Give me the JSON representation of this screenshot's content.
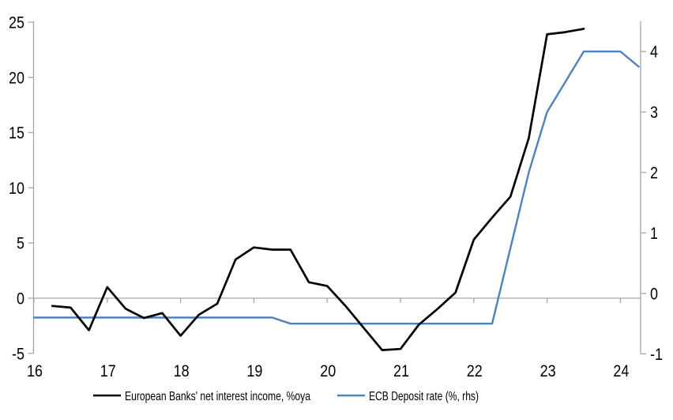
{
  "chart_data": {
    "type": "line",
    "title": "",
    "legend_position": "bottom-center",
    "grid": {
      "zero_line_only": true
    },
    "x_axis": {
      "min": 16,
      "max": 24.28,
      "ticks": [
        16,
        17,
        18,
        19,
        20,
        21,
        22,
        23,
        24
      ],
      "tick_position": "on-zero-line",
      "label_position": "bottom"
    },
    "left_axis": {
      "min": -5,
      "max": 25,
      "ticks": [
        -5,
        0,
        5,
        10,
        15,
        20,
        25
      ]
    },
    "right_axis": {
      "min": -1,
      "max": 4.5,
      "ticks": [
        -1,
        0,
        1,
        2,
        3,
        4
      ]
    },
    "series": [
      {
        "name": "European Banks' net interest income, %oya",
        "axis": "left",
        "color": "#000000",
        "x": [
          16.25,
          16.5,
          16.75,
          17,
          17.25,
          17.5,
          17.75,
          18,
          18.25,
          18.5,
          18.75,
          19,
          19.25,
          19.5,
          19.75,
          20,
          20.25,
          20.5,
          20.75,
          21,
          21.25,
          21.5,
          21.75,
          22,
          22.25,
          22.5,
          22.75,
          23,
          23.25,
          23.5
        ],
        "values": [
          -0.7,
          -0.85,
          -2.9,
          1.0,
          -0.95,
          -1.8,
          -1.35,
          -3.4,
          -1.5,
          -0.5,
          3.5,
          4.6,
          4.4,
          4.4,
          1.45,
          1.1,
          -0.7,
          -2.7,
          -4.7,
          -4.6,
          -2.4,
          -1.0,
          0.5,
          5.3,
          7.3,
          9.2,
          14.5,
          23.9,
          24.1,
          24.4
        ]
      },
      {
        "name": "ECB Deposit rate (%, rhs)",
        "axis": "right",
        "color": "#4F81BD",
        "x": [
          16,
          16.25,
          16.5,
          16.75,
          17,
          17.25,
          17.5,
          17.75,
          18,
          18.25,
          18.5,
          18.75,
          19,
          19.25,
          19.5,
          19.75,
          20,
          20.25,
          20.5,
          20.75,
          21,
          21.25,
          21.5,
          21.75,
          22,
          22.25,
          22.5,
          22.75,
          23,
          23.25,
          23.5,
          23.75,
          24,
          24.25
        ],
        "values": [
          -0.4,
          -0.4,
          -0.4,
          -0.4,
          -0.4,
          -0.4,
          -0.4,
          -0.4,
          -0.4,
          -0.4,
          -0.4,
          -0.4,
          -0.4,
          -0.4,
          -0.5,
          -0.5,
          -0.5,
          -0.5,
          -0.5,
          -0.5,
          -0.5,
          -0.5,
          -0.5,
          -0.5,
          -0.5,
          -0.5,
          0.75,
          2.0,
          3.0,
          3.5,
          4.0,
          4.0,
          4.0,
          3.75
        ]
      }
    ]
  },
  "colors": {
    "axis": "#A6A6A6",
    "zero_line": "#A6A6A6",
    "text": "#000000",
    "background": "#FFFFFF"
  }
}
